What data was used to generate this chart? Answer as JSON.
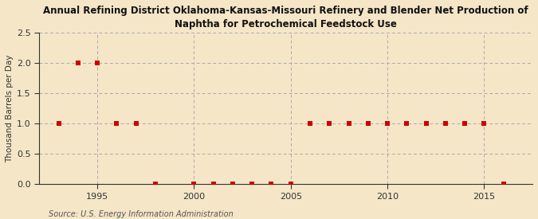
{
  "title": "Annual Refining District Oklahoma-Kansas-Missouri Refinery and Blender Net Production of\nNaphtha for Petrochemical Feedstock Use",
  "ylabel": "Thousand Barrels per Day",
  "source": "Source: U.S. Energy Information Administration",
  "background_color": "#f5e6c8",
  "plot_bg_color": "#f5e6c8",
  "grid_color": "#aaaaaa",
  "marker_color": "#cc0000",
  "xlim": [
    1992.0,
    2017.5
  ],
  "ylim": [
    0.0,
    2.5
  ],
  "yticks": [
    0.0,
    0.5,
    1.0,
    1.5,
    2.0,
    2.5
  ],
  "xticks": [
    1995,
    2000,
    2005,
    2010,
    2015
  ],
  "years": [
    1993,
    1994,
    1995,
    1996,
    1997,
    1998,
    2000,
    2001,
    2002,
    2003,
    2004,
    2005,
    2006,
    2007,
    2008,
    2009,
    2010,
    2011,
    2012,
    2013,
    2014,
    2015,
    2016
  ],
  "values": [
    1.0,
    2.0,
    2.0,
    1.0,
    1.0,
    0.0,
    0.0,
    0.0,
    0.0,
    0.0,
    0.0,
    0.0,
    1.0,
    1.0,
    1.0,
    1.0,
    1.0,
    1.0,
    1.0,
    1.0,
    1.0,
    1.0,
    0.0
  ]
}
